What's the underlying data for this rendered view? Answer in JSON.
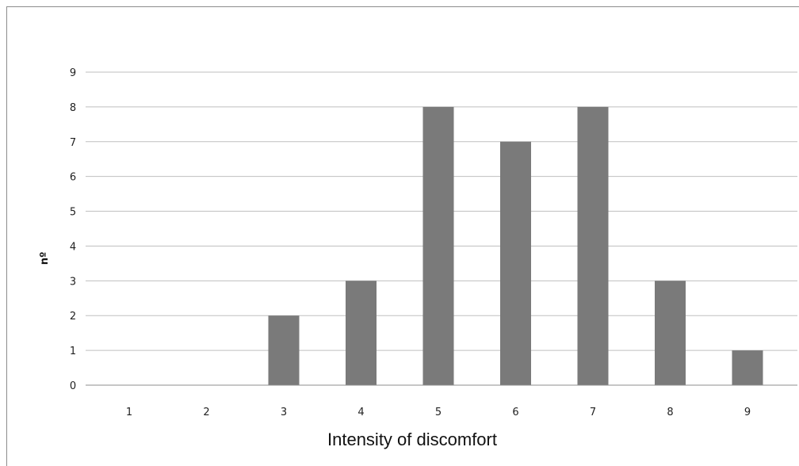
{
  "chart_data": {
    "type": "bar",
    "categories": [
      "1",
      "2",
      "3",
      "4",
      "5",
      "6",
      "7",
      "8",
      "9"
    ],
    "values": [
      0,
      0,
      2,
      3,
      8,
      7,
      8,
      3,
      1
    ],
    "title": "",
    "xlabel": "Intensity of discomfort",
    "ylabel": "nº",
    "ylim": [
      0,
      9
    ],
    "yticks": [
      "0",
      "1",
      "2",
      "3",
      "4",
      "5",
      "6",
      "7",
      "8",
      "9"
    ],
    "grid": true,
    "legend": "none",
    "bar_color": "#7a7a7a",
    "grid_color": "#bfbfbf"
  }
}
